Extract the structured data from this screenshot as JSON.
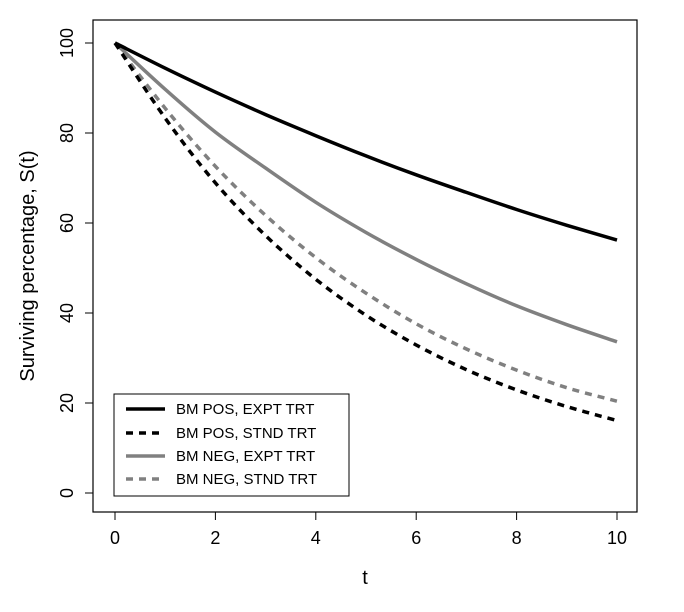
{
  "chart_data": {
    "type": "line",
    "title": "",
    "xlabel": "t",
    "ylabel": "Surviving percentage, S(t)",
    "xlim": [
      0,
      10
    ],
    "ylim": [
      0,
      100
    ],
    "x_ticks": [
      "0",
      "2",
      "4",
      "6",
      "8",
      "10"
    ],
    "y_ticks": [
      "0",
      "20",
      "40",
      "60",
      "80",
      "100"
    ],
    "grid": false,
    "legend_position": "bottom-left",
    "x": [
      0,
      1,
      2,
      3,
      4,
      5,
      6,
      7,
      8,
      9,
      10
    ],
    "series": [
      {
        "name": "BM POS, EXPT TRT",
        "color": "#000000",
        "style": "solid",
        "values": [
          100,
          94.4,
          89.1,
          84.1,
          79.4,
          74.9,
          70.7,
          66.8,
          63.0,
          59.5,
          56.2
        ]
      },
      {
        "name": "BM POS, STND TRT",
        "color": "#000000",
        "style": "dashed",
        "values": [
          100,
          83.3,
          68.9,
          57.2,
          47.5,
          39.5,
          32.9,
          27.4,
          22.9,
          19.2,
          16.1
        ]
      },
      {
        "name": "BM NEG, EXPT TRT",
        "color": "#808080",
        "style": "solid",
        "values": [
          100,
          89.7,
          80.2,
          72.2,
          64.6,
          57.9,
          51.9,
          46.5,
          41.6,
          37.4,
          33.6
        ]
      },
      {
        "name": "BM NEG, STND TRT",
        "color": "#808080",
        "style": "dashed",
        "values": [
          100,
          85.5,
          72.6,
          61.7,
          52.3,
          44.4,
          37.6,
          32.0,
          27.3,
          23.4,
          20.4
        ]
      }
    ]
  }
}
